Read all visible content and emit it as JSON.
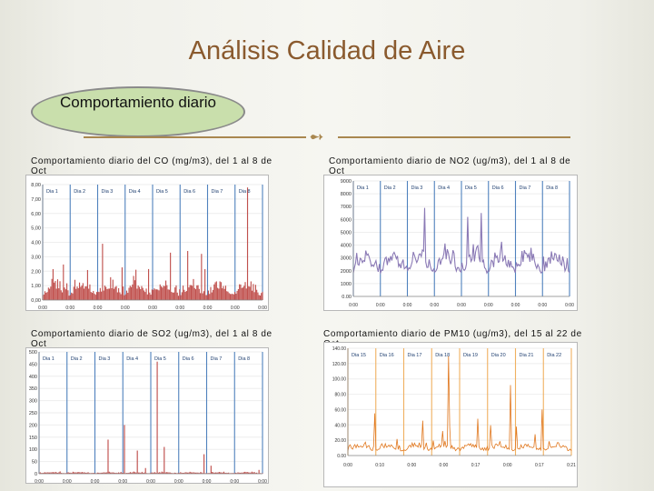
{
  "slide": {
    "title": "Análisis Calidad de Aire",
    "badge": "Comportamiento diario",
    "separator_icon": "dingbat-arrows-icon",
    "accent_color": "#a9874f",
    "badge_fill": "#c9dfac"
  },
  "chart_data": [
    {
      "type": "bar",
      "title": "Comportamiento diario del CO (mg/m3), del 1 al 8 de Oct",
      "days": [
        "Dia 1",
        "Dia 2",
        "Dia 3",
        "Dia 4",
        "Dia 5",
        "Dia 6",
        "Dia 7",
        "Dia 8"
      ],
      "yticks": [
        "0,00",
        "1,00",
        "2,00",
        "3,00",
        "4,00",
        "5,00",
        "6,00",
        "7,00",
        "8,00"
      ],
      "ylim": [
        0,
        8
      ],
      "xticks": [
        "0:00",
        "0:00",
        "0:00",
        "0:00",
        "0:00",
        "0:00",
        "0:00",
        "0:00",
        "0:00"
      ],
      "color": "#c0504d",
      "seed": 11,
      "base": 0.3,
      "amp": 1.4,
      "spike_prob": 0.05,
      "spike_amp": 2.6,
      "peaks": [
        [
          0.93,
          7.8
        ],
        [
          0.27,
          3.9
        ],
        [
          0.66,
          3.4
        ],
        [
          0.72,
          3.2
        ]
      ],
      "grid": "vertical-blue"
    },
    {
      "type": "area",
      "title": "Comportamiento diario de NO2 (ug/m3), del 1 al 8 de Oct",
      "days": [
        "Dia 1",
        "Dia 2",
        "Dia 3",
        "Dia 4",
        "Dia 5",
        "Dia 6",
        "Dia 7",
        "Dia 8"
      ],
      "yticks": [
        "0.00",
        "1000",
        "2000",
        "3000",
        "4000",
        "5000",
        "6000",
        "7000",
        "8000",
        "9000"
      ],
      "ylim": [
        0,
        9000
      ],
      "xticks": [
        "0:00",
        "0:00",
        "0:00",
        "0:00",
        "0:00",
        "0:00",
        "0:00",
        "0:00",
        "0:00"
      ],
      "color": "#8a79b5",
      "seed": 23,
      "base": 1800,
      "amp": 2600,
      "spike_prob": 0.04,
      "spike_amp": 1500,
      "peaks": [
        [
          0.33,
          6900
        ],
        [
          0.53,
          6200
        ],
        [
          0.59,
          6500
        ]
      ],
      "grid": "vertical-blue"
    },
    {
      "type": "bar",
      "title": "Comportamiento diario de SO2 (ug/m3), del 1 al 8 de Oct",
      "days": [
        "Dia 1",
        "Dia 2",
        "Dia 3",
        "Dia 4",
        "Dia 5",
        "Dia 6",
        "Dia 7",
        "Dia 8"
      ],
      "yticks": [
        "0",
        "50",
        "100",
        "150",
        "200",
        "250",
        "300",
        "350",
        "400",
        "450",
        "500"
      ],
      "ylim": [
        0,
        500
      ],
      "xticks": [
        "0:00",
        "0:00",
        "0:00",
        "0:00",
        "0:00",
        "0:00",
        "0:00",
        "0:00",
        "0:00"
      ],
      "color": "#c0504d",
      "seed": 37,
      "base": 2,
      "amp": 8,
      "spike_prob": 0.02,
      "spike_amp": 30,
      "peaks": [
        [
          0.53,
          460
        ],
        [
          0.38,
          200
        ],
        [
          0.56,
          110
        ],
        [
          0.31,
          140
        ],
        [
          0.74,
          80
        ],
        [
          0.44,
          95
        ]
      ],
      "grid": "vertical-blue"
    },
    {
      "type": "line",
      "title": "Comportamiento diario de PM10 (ug/m3), del 15 al 22 de Oct",
      "days": [
        "Dia 15",
        "Dia 16",
        "Dia 17",
        "Dia 18",
        "Dia 19",
        "Dia 20",
        "Dia 21",
        "Dia 22"
      ],
      "yticks": [
        "0.00",
        "20.00",
        "40.00",
        "60.00",
        "80.00",
        "100.00",
        "120.00",
        "140.00"
      ],
      "ylim": [
        0,
        140
      ],
      "xticks": [
        "0:00",
        "0:10",
        "0:00",
        "0:00",
        "0:17",
        "0:00",
        "0:17",
        "0:21"
      ],
      "color": "#e0771e",
      "seed": 41,
      "base": 6,
      "amp": 14,
      "spike_prob": 0.05,
      "spike_amp": 30,
      "peaks": [
        [
          0.45,
          130
        ],
        [
          0.73,
          92
        ],
        [
          0.12,
          55
        ],
        [
          0.87,
          60
        ],
        [
          0.58,
          48
        ]
      ],
      "grid": "vertical-orange"
    }
  ]
}
